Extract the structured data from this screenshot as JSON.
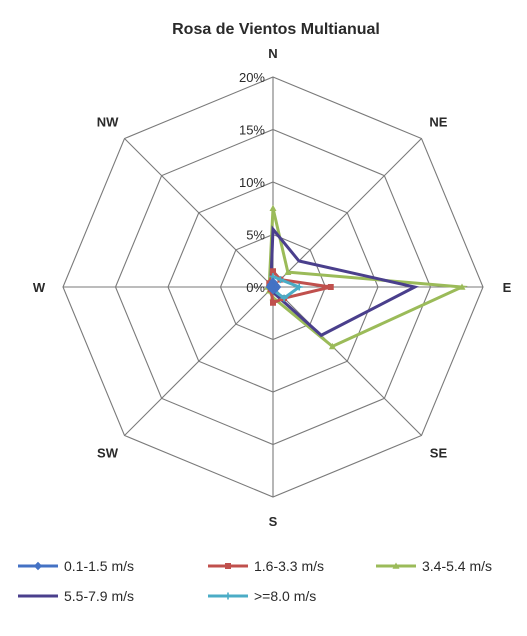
{
  "chart_data": {
    "type": "radar",
    "title": "Rosa de Vientos Multianual",
    "directions": [
      "N",
      "NE",
      "E",
      "SE",
      "S",
      "SW",
      "W",
      "NW"
    ],
    "radial_ticks": [
      "0%",
      "5%",
      "10%",
      "15%",
      "20%"
    ],
    "radial_max": 20,
    "grid": true,
    "legend_position": "bottom",
    "series": [
      {
        "name": "0.1-1.5 m/s",
        "color": "#4472c4",
        "marker": "diamond",
        "values": [
          0.5,
          0.3,
          0.4,
          0.3,
          0.3,
          0.2,
          0.3,
          0.3
        ]
      },
      {
        "name": "1.6-3.3 m/s",
        "color": "#c0504d",
        "marker": "square",
        "values": [
          1.5,
          1.0,
          5.5,
          1.5,
          1.5,
          0.3,
          0.2,
          0.5
        ]
      },
      {
        "name": "3.4-5.4 m/s",
        "color": "#9bbb59",
        "marker": "triangle",
        "values": [
          7.5,
          2.0,
          18.0,
          8.0,
          1.0,
          0.5,
          0.5,
          0.5
        ]
      },
      {
        "name": "5.5-7.9 m/s",
        "color": "#4a3f8c",
        "marker": "none",
        "values": [
          5.5,
          3.5,
          13.5,
          6.5,
          0.5,
          0.3,
          0.3,
          0.3
        ]
      },
      {
        "name": ">=8.0 m/s",
        "color": "#4bacc6",
        "marker": "plus",
        "values": [
          1.0,
          1.0,
          2.5,
          1.5,
          0.3,
          0.2,
          0.2,
          0.2
        ]
      }
    ]
  }
}
